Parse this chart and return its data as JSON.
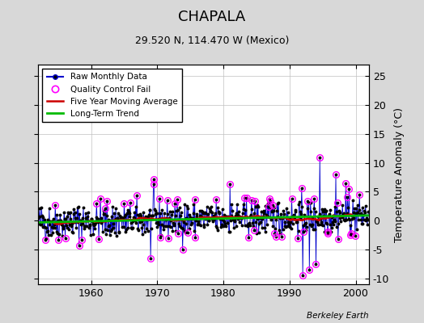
{
  "title": "CHAPALA",
  "subtitle": "29.520 N, 114.470 W (Mexico)",
  "ylabel_right": "Temperature Anomaly (°C)",
  "credit": "Berkeley Earth",
  "xlim": [
    1952,
    2002
  ],
  "ylim": [
    -11,
    27
  ],
  "yticks_right": [
    -10,
    -5,
    0,
    5,
    10,
    15,
    20,
    25
  ],
  "xticks": [
    1960,
    1970,
    1980,
    1990,
    2000
  ],
  "background_color": "#d8d8d8",
  "plot_bg_color": "#ffffff",
  "raw_color": "#0000cc",
  "dot_color": "#000000",
  "qc_color": "#ff00ff",
  "moving_avg_color": "#cc0000",
  "trend_color": "#00bb00",
  "seed": 42,
  "figsize": [
    5.24,
    4.0
  ],
  "dpi": 100
}
